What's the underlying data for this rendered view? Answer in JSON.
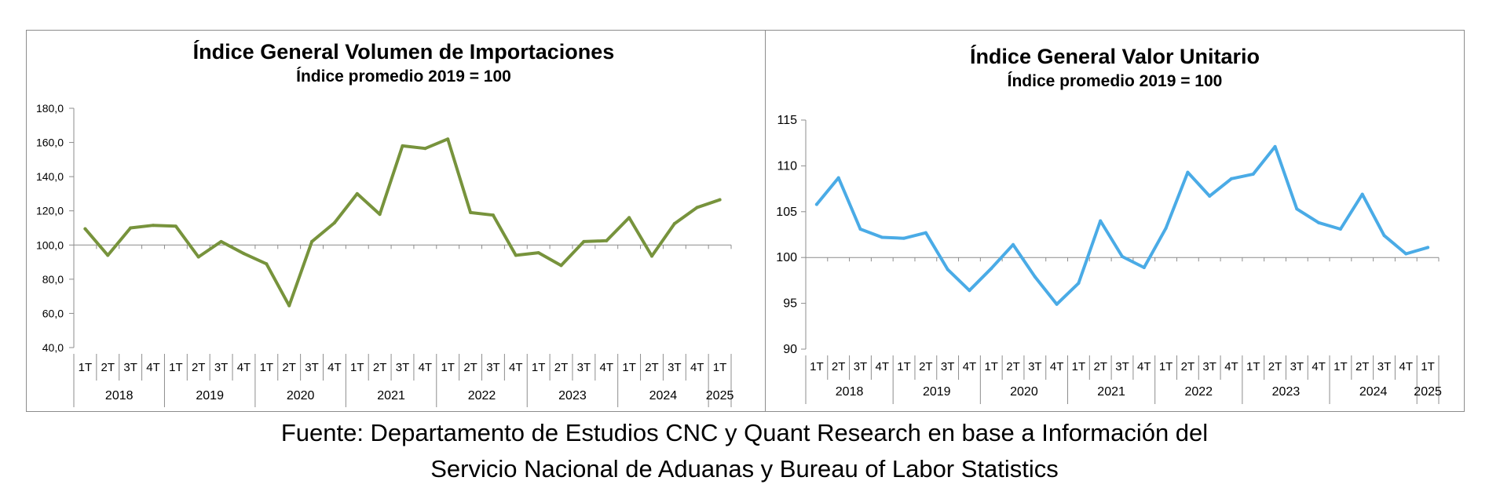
{
  "chart_data": [
    {
      "type": "line",
      "title": "Índice General Volumen de Importaciones",
      "subtitle": "Índice promedio 2019 = 100",
      "color": "#77933c",
      "ylim": [
        40,
        180
      ],
      "yticks": [
        "40,0",
        "60,0",
        "80,0",
        "100,0",
        "120,0",
        "140,0",
        "160,0",
        "180,0"
      ],
      "ytick_values": [
        40,
        60,
        80,
        100,
        120,
        140,
        160,
        180
      ],
      "baseline": 100,
      "quarters": [
        "1T",
        "2T",
        "3T",
        "4T",
        "1T",
        "2T",
        "3T",
        "4T",
        "1T",
        "2T",
        "3T",
        "4T",
        "1T",
        "2T",
        "3T",
        "4T",
        "1T",
        "2T",
        "3T",
        "4T",
        "1T",
        "2T",
        "3T",
        "4T",
        "1T",
        "2T",
        "3T",
        "4T",
        "1T"
      ],
      "years": [
        {
          "label": "2018",
          "count": 4
        },
        {
          "label": "2019",
          "count": 4
        },
        {
          "label": "2020",
          "count": 4
        },
        {
          "label": "2021",
          "count": 4
        },
        {
          "label": "2022",
          "count": 4
        },
        {
          "label": "2023",
          "count": 4
        },
        {
          "label": "2024",
          "count": 4
        },
        {
          "label": "2025",
          "count": 1
        }
      ],
      "values": [
        109.5,
        94,
        110,
        111.5,
        111,
        93,
        102,
        95,
        89,
        64.5,
        102,
        113,
        130,
        118,
        158,
        156.5,
        162,
        119,
        117.5,
        94,
        95.5,
        88,
        102,
        102.5,
        116,
        93.5,
        112.5,
        122,
        126.5
      ]
    },
    {
      "type": "line",
      "title": "Índice General Valor Unitario",
      "subtitle": "Índice promedio 2019 = 100",
      "color": "#4aabe6",
      "ylim": [
        90,
        115
      ],
      "yticks": [
        "90",
        "95",
        "100",
        "105",
        "110",
        "115"
      ],
      "ytick_values": [
        90,
        95,
        100,
        105,
        110,
        115
      ],
      "baseline": 100,
      "quarters": [
        "1T",
        "2T",
        "3T",
        "4T",
        "1T",
        "2T",
        "3T",
        "4T",
        "1T",
        "2T",
        "3T",
        "4T",
        "1T",
        "2T",
        "3T",
        "4T",
        "1T",
        "2T",
        "3T",
        "4T",
        "1T",
        "2T",
        "3T",
        "4T",
        "1T",
        "2T",
        "3T",
        "4T",
        "1T"
      ],
      "years": [
        {
          "label": "2018",
          "count": 4
        },
        {
          "label": "2019",
          "count": 4
        },
        {
          "label": "2020",
          "count": 4
        },
        {
          "label": "2021",
          "count": 4
        },
        {
          "label": "2022",
          "count": 4
        },
        {
          "label": "2023",
          "count": 4
        },
        {
          "label": "2024",
          "count": 4
        },
        {
          "label": "2025",
          "count": 1
        }
      ],
      "values": [
        105.8,
        108.7,
        103.1,
        102.2,
        102.1,
        102.7,
        98.7,
        96.4,
        98.8,
        101.4,
        97.9,
        94.9,
        97.2,
        104,
        100.1,
        98.9,
        103.2,
        109.3,
        106.7,
        108.6,
        109.1,
        112.1,
        105.3,
        103.8,
        103.1,
        106.9,
        102.4,
        100.4,
        101.1
      ]
    }
  ],
  "source": {
    "line1": "Fuente: Departamento de Estudios CNC y Quant Research en base a Información del",
    "line2": "Servicio Nacional de Aduanas y Bureau of Labor Statistics"
  }
}
